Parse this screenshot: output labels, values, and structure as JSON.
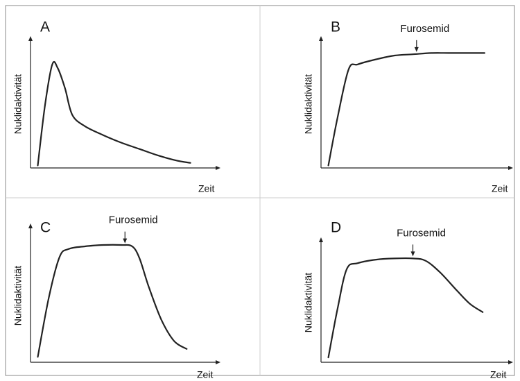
{
  "chart_data": [
    {
      "type": "line",
      "panel_label": "A",
      "xlabel": "Zeit",
      "ylabel": "Nuklidaktivität",
      "xlim": [
        0,
        10
      ],
      "ylim": [
        0,
        10
      ],
      "annotation": null,
      "series": [
        {
          "x": [
            0.4,
            0.8,
            1.2,
            1.5,
            1.9,
            2.3,
            3.0,
            4.0,
            5.0,
            6.0,
            7.0,
            8.0,
            8.8
          ],
          "y": [
            0.2,
            5.0,
            8.2,
            7.9,
            6.3,
            4.2,
            3.3,
            2.6,
            2.0,
            1.5,
            1.0,
            0.6,
            0.4
          ]
        }
      ]
    },
    {
      "type": "line",
      "panel_label": "B",
      "xlabel": "Zeit",
      "ylabel": "Nuklidaktivität",
      "xlim": [
        0,
        10
      ],
      "ylim": [
        0,
        10
      ],
      "annotation": {
        "text": "Furosemid",
        "x": 5.2
      },
      "series": [
        {
          "x": [
            0.4,
            0.9,
            1.5,
            2.0,
            3.0,
            4.0,
            5.0,
            6.0,
            7.0,
            8.0,
            8.9
          ],
          "y": [
            0.2,
            4.0,
            7.8,
            8.2,
            8.6,
            8.9,
            9.0,
            9.1,
            9.1,
            9.1,
            9.1
          ]
        }
      ]
    },
    {
      "type": "line",
      "panel_label": "C",
      "xlabel": "Zeit",
      "ylabel": "Nuklidaktivität",
      "xlim": [
        0,
        10
      ],
      "ylim": [
        0,
        10
      ],
      "annotation": {
        "text": "Furosemid",
        "x": 5.2
      },
      "series": [
        {
          "x": [
            0.4,
            1.0,
            1.6,
            2.1,
            3.0,
            4.0,
            5.0,
            5.6,
            6.0,
            6.5,
            7.2,
            7.9,
            8.6
          ],
          "y": [
            0.4,
            4.8,
            7.9,
            8.5,
            8.7,
            8.8,
            8.8,
            8.7,
            7.8,
            5.7,
            3.2,
            1.6,
            1.0
          ]
        }
      ]
    },
    {
      "type": "line",
      "panel_label": "D",
      "xlabel": "Zeit",
      "ylabel": "Nuklidaktivität",
      "xlim": [
        0,
        10
      ],
      "ylim": [
        0,
        10
      ],
      "annotation": {
        "text": "Furosemid",
        "x": 5.0
      },
      "series": [
        {
          "x": [
            0.4,
            0.9,
            1.4,
            2.0,
            3.0,
            4.0,
            5.0,
            5.7,
            6.5,
            7.4,
            8.1,
            8.8
          ],
          "y": [
            0.4,
            4.5,
            7.8,
            8.3,
            8.6,
            8.7,
            8.7,
            8.5,
            7.5,
            6.0,
            4.9,
            4.2
          ]
        }
      ]
    }
  ]
}
